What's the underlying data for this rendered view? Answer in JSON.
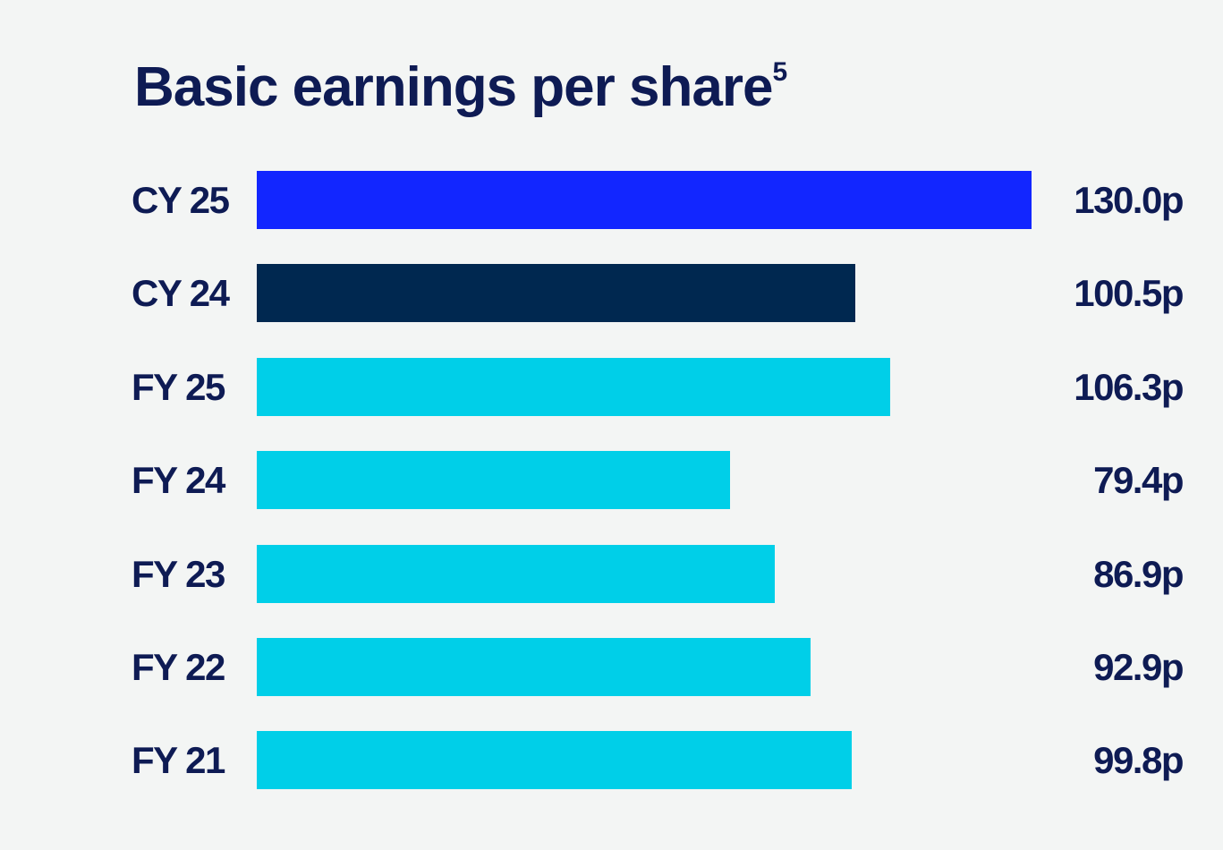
{
  "chart_data": {
    "type": "bar",
    "orientation": "horizontal",
    "title": "Basic earnings per share",
    "title_footnote": "5",
    "categories": [
      "CY 25",
      "CY 24",
      "FY 25",
      "FY 24",
      "FY 23",
      "FY 22",
      "FY 21"
    ],
    "values": [
      130.0,
      100.5,
      106.3,
      79.4,
      86.9,
      92.9,
      99.8
    ],
    "labels": [
      "130.0p",
      "100.5p",
      "106.3p",
      "79.4p",
      "86.9p",
      "92.9p",
      "99.8p"
    ],
    "colors": [
      "#1226ff",
      "#002850",
      "#00cfe8",
      "#00cfe8",
      "#00cfe8",
      "#00cfe8",
      "#00cfe8"
    ],
    "unit": "p",
    "xlim": [
      0,
      130
    ],
    "grid": false,
    "xlabel": "",
    "ylabel": ""
  }
}
